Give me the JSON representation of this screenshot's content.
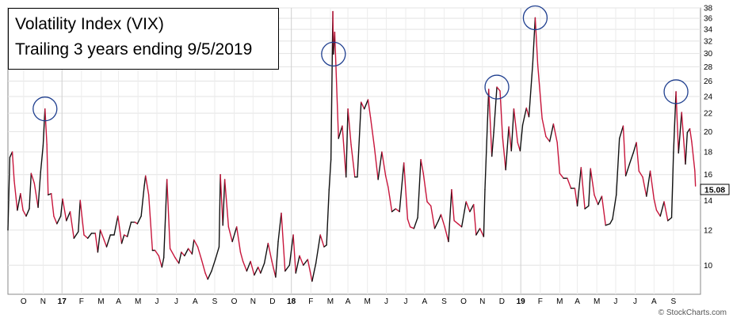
{
  "chart_data": {
    "type": "line",
    "title": "Volatility Index (VIX)",
    "subtitle": "Trailing 3 years ending 9/5/2019",
    "y_scale": "log",
    "ylim": [
      8.6,
      38
    ],
    "y_ticks": [
      10,
      12,
      14,
      16,
      18,
      20,
      22,
      24,
      26,
      28,
      30,
      32,
      34,
      36,
      38
    ],
    "x_tick_labels": [
      "O",
      "N",
      "17",
      "F",
      "M",
      "A",
      "M",
      "J",
      "J",
      "A",
      "S",
      "O",
      "N",
      "D",
      "18",
      "F",
      "M",
      "A",
      "M",
      "J",
      "J",
      "A",
      "S",
      "O",
      "N",
      "D",
      "19",
      "F",
      "M",
      "A",
      "M",
      "J",
      "J",
      "A",
      "S"
    ],
    "x_range": [
      "2016-09-06",
      "2019-09-13"
    ],
    "last_value_label": "15.08",
    "highlighted_peaks": [
      "2016-11-04",
      "2018-02-06",
      "2018-10-24",
      "2018-12-24",
      "2019-08-05"
    ],
    "series": [
      {
        "color_up": "#111111",
        "color_down": "#c8163c",
        "points": [
          [
            "2016-09-06",
            12.0
          ],
          [
            "2016-09-09",
            17.5
          ],
          [
            "2016-09-13",
            18.0
          ],
          [
            "2016-09-16",
            15.5
          ],
          [
            "2016-09-21",
            13.3
          ],
          [
            "2016-09-26",
            14.5
          ],
          [
            "2016-09-30",
            13.3
          ],
          [
            "2016-10-05",
            12.9
          ],
          [
            "2016-10-10",
            13.4
          ],
          [
            "2016-10-13",
            16.1
          ],
          [
            "2016-10-18",
            15.3
          ],
          [
            "2016-10-24",
            13.5
          ],
          [
            "2016-10-28",
            16.2
          ],
          [
            "2016-11-01",
            18.6
          ],
          [
            "2016-11-04",
            22.5
          ],
          [
            "2016-11-07",
            18.7
          ],
          [
            "2016-11-09",
            14.4
          ],
          [
            "2016-11-14",
            14.5
          ],
          [
            "2016-11-18",
            12.9
          ],
          [
            "2016-11-23",
            12.4
          ],
          [
            "2016-11-29",
            12.9
          ],
          [
            "2016-12-02",
            14.1
          ],
          [
            "2016-12-08",
            12.6
          ],
          [
            "2016-12-14",
            13.2
          ],
          [
            "2016-12-20",
            11.5
          ],
          [
            "2016-12-27",
            11.9
          ],
          [
            "2016-12-30",
            14.0
          ],
          [
            "2017-01-05",
            11.7
          ],
          [
            "2017-01-11",
            11.5
          ],
          [
            "2017-01-17",
            11.8
          ],
          [
            "2017-01-23",
            11.8
          ],
          [
            "2017-01-27",
            10.7
          ],
          [
            "2017-01-31",
            12.0
          ],
          [
            "2017-02-06",
            11.4
          ],
          [
            "2017-02-10",
            11.0
          ],
          [
            "2017-02-16",
            11.7
          ],
          [
            "2017-02-22",
            11.7
          ],
          [
            "2017-02-28",
            12.9
          ],
          [
            "2017-03-06",
            11.2
          ],
          [
            "2017-03-10",
            11.7
          ],
          [
            "2017-03-15",
            11.6
          ],
          [
            "2017-03-21",
            12.5
          ],
          [
            "2017-03-27",
            12.5
          ],
          [
            "2017-03-31",
            12.4
          ],
          [
            "2017-04-06",
            12.9
          ],
          [
            "2017-04-11",
            15.1
          ],
          [
            "2017-04-13",
            15.9
          ],
          [
            "2017-04-18",
            14.4
          ],
          [
            "2017-04-24",
            10.8
          ],
          [
            "2017-04-28",
            10.8
          ],
          [
            "2017-05-04",
            10.5
          ],
          [
            "2017-05-09",
            9.9
          ],
          [
            "2017-05-12",
            10.4
          ],
          [
            "2017-05-17",
            15.6
          ],
          [
            "2017-05-22",
            10.9
          ],
          [
            "2017-05-30",
            10.4
          ],
          [
            "2017-06-05",
            10.1
          ],
          [
            "2017-06-09",
            10.7
          ],
          [
            "2017-06-14",
            10.5
          ],
          [
            "2017-06-20",
            10.9
          ],
          [
            "2017-06-26",
            10.6
          ],
          [
            "2017-06-29",
            11.4
          ],
          [
            "2017-07-05",
            11.0
          ],
          [
            "2017-07-11",
            10.3
          ],
          [
            "2017-07-17",
            9.6
          ],
          [
            "2017-07-21",
            9.3
          ],
          [
            "2017-07-27",
            9.7
          ],
          [
            "2017-08-02",
            10.3
          ],
          [
            "2017-08-08",
            11.0
          ],
          [
            "2017-08-10",
            16.0
          ],
          [
            "2017-08-14",
            12.3
          ],
          [
            "2017-08-17",
            15.6
          ],
          [
            "2017-08-23",
            12.2
          ],
          [
            "2017-08-29",
            11.3
          ],
          [
            "2017-09-05",
            12.2
          ],
          [
            "2017-09-11",
            10.7
          ],
          [
            "2017-09-15",
            10.2
          ],
          [
            "2017-09-21",
            9.7
          ],
          [
            "2017-09-27",
            10.2
          ],
          [
            "2017-10-03",
            9.5
          ],
          [
            "2017-10-09",
            9.9
          ],
          [
            "2017-10-13",
            9.6
          ],
          [
            "2017-10-19",
            10.1
          ],
          [
            "2017-10-25",
            11.2
          ],
          [
            "2017-10-31",
            10.2
          ],
          [
            "2017-11-06",
            9.4
          ],
          [
            "2017-11-10",
            11.3
          ],
          [
            "2017-11-15",
            13.1
          ],
          [
            "2017-11-21",
            9.7
          ],
          [
            "2017-11-28",
            10.0
          ],
          [
            "2017-12-04",
            11.7
          ],
          [
            "2017-12-08",
            9.6
          ],
          [
            "2017-12-14",
            10.5
          ],
          [
            "2017-12-20",
            10.0
          ],
          [
            "2017-12-27",
            10.3
          ],
          [
            "2018-01-03",
            9.2
          ],
          [
            "2018-01-09",
            10.1
          ],
          [
            "2018-01-16",
            11.7
          ],
          [
            "2018-01-22",
            11.0
          ],
          [
            "2018-01-26",
            11.1
          ],
          [
            "2018-01-30",
            14.8
          ],
          [
            "2018-02-02",
            17.3
          ],
          [
            "2018-02-05",
            37.3
          ],
          [
            "2018-02-06",
            29.9
          ],
          [
            "2018-02-08",
            33.5
          ],
          [
            "2018-02-14",
            19.3
          ],
          [
            "2018-02-20",
            20.6
          ],
          [
            "2018-02-26",
            15.8
          ],
          [
            "2018-03-01",
            22.5
          ],
          [
            "2018-03-06",
            18.7
          ],
          [
            "2018-03-12",
            15.8
          ],
          [
            "2018-03-16",
            15.8
          ],
          [
            "2018-03-22",
            23.3
          ],
          [
            "2018-03-27",
            22.5
          ],
          [
            "2018-04-02",
            23.6
          ],
          [
            "2018-04-06",
            21.5
          ],
          [
            "2018-04-12",
            18.5
          ],
          [
            "2018-04-18",
            15.6
          ],
          [
            "2018-04-24",
            18.0
          ],
          [
            "2018-04-30",
            15.9
          ],
          [
            "2018-05-04",
            15.0
          ],
          [
            "2018-05-10",
            13.2
          ],
          [
            "2018-05-16",
            13.4
          ],
          [
            "2018-05-22",
            13.2
          ],
          [
            "2018-05-29",
            17.0
          ],
          [
            "2018-06-04",
            12.7
          ],
          [
            "2018-06-08",
            12.2
          ],
          [
            "2018-06-14",
            12.1
          ],
          [
            "2018-06-20",
            12.8
          ],
          [
            "2018-06-25",
            17.3
          ],
          [
            "2018-06-29",
            16.1
          ],
          [
            "2018-07-05",
            13.9
          ],
          [
            "2018-07-11",
            13.6
          ],
          [
            "2018-07-17",
            12.1
          ],
          [
            "2018-07-23",
            12.6
          ],
          [
            "2018-07-27",
            13.0
          ],
          [
            "2018-08-02",
            12.2
          ],
          [
            "2018-08-08",
            11.3
          ],
          [
            "2018-08-13",
            14.8
          ],
          [
            "2018-08-17",
            12.6
          ],
          [
            "2018-08-23",
            12.4
          ],
          [
            "2018-08-29",
            12.2
          ],
          [
            "2018-09-05",
            13.9
          ],
          [
            "2018-09-11",
            13.2
          ],
          [
            "2018-09-17",
            13.7
          ],
          [
            "2018-09-21",
            11.7
          ],
          [
            "2018-09-27",
            12.1
          ],
          [
            "2018-10-03",
            11.6
          ],
          [
            "2018-10-05",
            14.8
          ],
          [
            "2018-10-10",
            22.9
          ],
          [
            "2018-10-11",
            24.9
          ],
          [
            "2018-10-16",
            17.6
          ],
          [
            "2018-10-19",
            19.9
          ],
          [
            "2018-10-24",
            25.2
          ],
          [
            "2018-10-29",
            24.7
          ],
          [
            "2018-11-02",
            19.5
          ],
          [
            "2018-11-07",
            16.4
          ],
          [
            "2018-11-12",
            20.5
          ],
          [
            "2018-11-16",
            18.1
          ],
          [
            "2018-11-20",
            22.5
          ],
          [
            "2018-11-26",
            18.9
          ],
          [
            "2018-11-30",
            18.1
          ],
          [
            "2018-12-04",
            20.7
          ],
          [
            "2018-12-10",
            22.6
          ],
          [
            "2018-12-14",
            21.6
          ],
          [
            "2018-12-20",
            28.4
          ],
          [
            "2018-12-24",
            36.1
          ],
          [
            "2018-12-28",
            28.3
          ],
          [
            "2019-01-04",
            21.4
          ],
          [
            "2019-01-10",
            19.5
          ],
          [
            "2019-01-16",
            19.0
          ],
          [
            "2019-01-22",
            20.8
          ],
          [
            "2019-01-28",
            18.9
          ],
          [
            "2019-02-01",
            16.1
          ],
          [
            "2019-02-07",
            15.7
          ],
          [
            "2019-02-13",
            15.7
          ],
          [
            "2019-02-19",
            14.9
          ],
          [
            "2019-02-25",
            14.9
          ],
          [
            "2019-03-01",
            13.6
          ],
          [
            "2019-03-07",
            16.6
          ],
          [
            "2019-03-13",
            13.4
          ],
          [
            "2019-03-19",
            13.6
          ],
          [
            "2019-03-22",
            16.5
          ],
          [
            "2019-03-28",
            14.4
          ],
          [
            "2019-04-03",
            13.7
          ],
          [
            "2019-04-09",
            14.3
          ],
          [
            "2019-04-15",
            12.3
          ],
          [
            "2019-04-22",
            12.4
          ],
          [
            "2019-04-26",
            12.7
          ],
          [
            "2019-05-02",
            14.4
          ],
          [
            "2019-05-07",
            19.3
          ],
          [
            "2019-05-13",
            20.6
          ],
          [
            "2019-05-17",
            15.9
          ],
          [
            "2019-05-23",
            16.9
          ],
          [
            "2019-05-29",
            17.9
          ],
          [
            "2019-06-03",
            18.9
          ],
          [
            "2019-06-07",
            16.3
          ],
          [
            "2019-06-13",
            15.8
          ],
          [
            "2019-06-19",
            14.3
          ],
          [
            "2019-06-25",
            16.3
          ],
          [
            "2019-07-01",
            14.1
          ],
          [
            "2019-07-05",
            13.3
          ],
          [
            "2019-07-11",
            12.9
          ],
          [
            "2019-07-17",
            13.9
          ],
          [
            "2019-07-23",
            12.6
          ],
          [
            "2019-07-29",
            12.8
          ],
          [
            "2019-08-01",
            17.9
          ],
          [
            "2019-08-05",
            24.6
          ],
          [
            "2019-08-09",
            17.9
          ],
          [
            "2019-08-14",
            22.1
          ],
          [
            "2019-08-20",
            16.9
          ],
          [
            "2019-08-23",
            19.9
          ],
          [
            "2019-08-27",
            20.3
          ],
          [
            "2019-08-30",
            18.98
          ],
          [
            "2019-09-04",
            16.3
          ],
          [
            "2019-09-05",
            15.08
          ]
        ]
      }
    ],
    "grid": true,
    "credit": "© StockCharts.com"
  },
  "title_box": {
    "line1": "Volatility Index (VIX)",
    "line2": "Trailing 3 years ending 9/5/2019"
  }
}
